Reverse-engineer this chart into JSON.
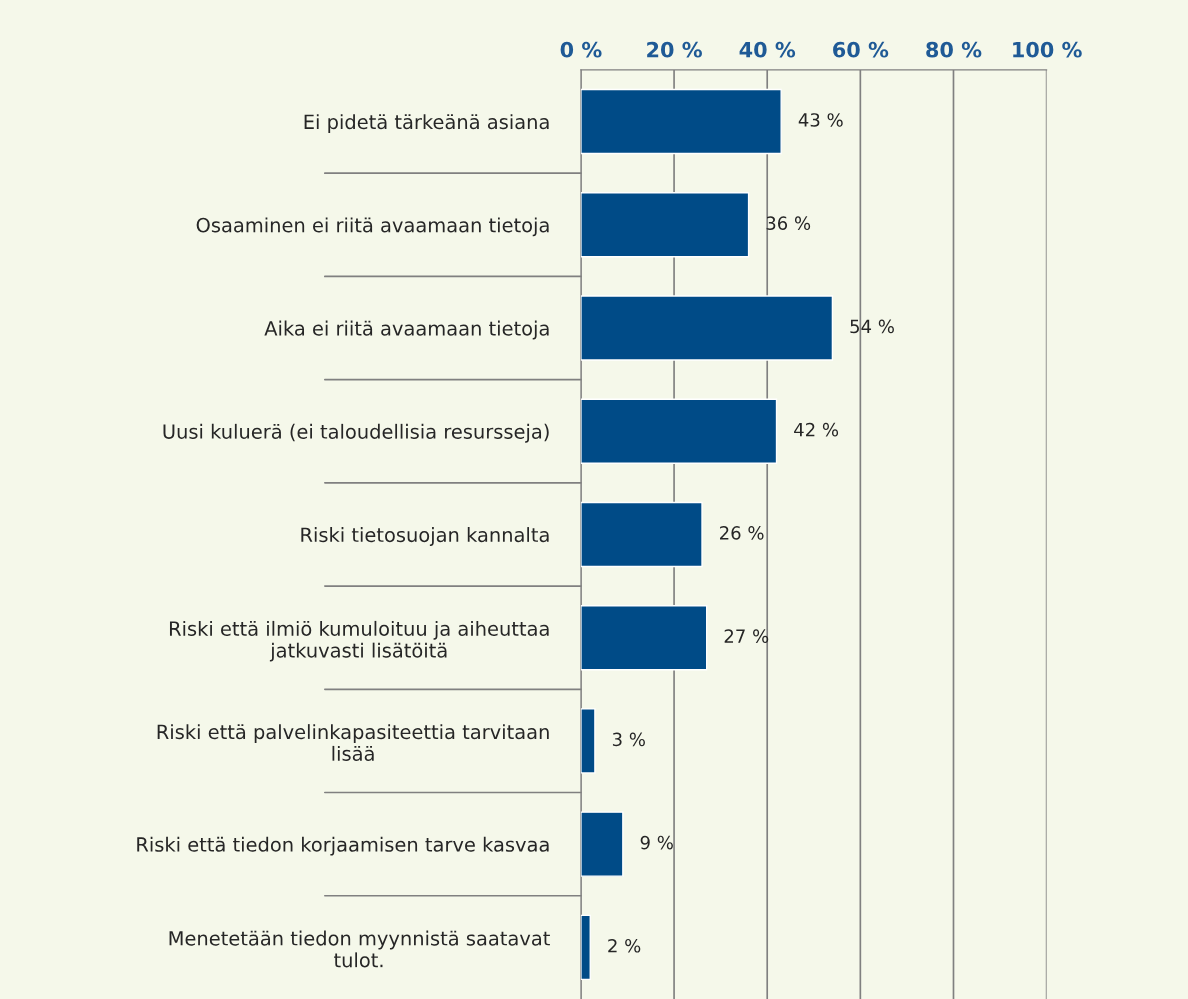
{
  "chart_data": {
    "type": "bar",
    "orientation": "horizontal",
    "categories": [
      "Ei pidetä tärkeänä asiana",
      "Osaaminen ei riitä avaamaan tietoja",
      "Aika ei riitä avaamaan tietoja",
      "Uusi kuluerä (ei taloudellisia resursseja)",
      "Riski tietosuojan kannalta",
      "Riski että ilmiö kumuloituu ja aiheuttaa\njatkuvasti lisätöitä",
      "Riski että palvelinkapasiteettia tarvitaan\nlisää",
      "Riski että tiedon korjaamisen tarve kasvaa",
      "Menetetään tiedon myynnistä saatavat\ntulot."
    ],
    "values": [
      43,
      36,
      54,
      42,
      26,
      27,
      3,
      9,
      2
    ],
    "value_labels": [
      "43 %",
      "36 %",
      "54 %",
      "42 %",
      "26 %",
      "27 %",
      "3 %",
      "9 %",
      "2 %"
    ],
    "color": "#004b87",
    "xlim": [
      0,
      100
    ],
    "xticks": [
      {
        "value": 0,
        "label": "0 %"
      },
      {
        "value": 20,
        "label": "20 %"
      },
      {
        "value": 40,
        "label": "40 %"
      },
      {
        "value": 60,
        "label": "60 %"
      },
      {
        "value": 80,
        "label": "80 %"
      },
      {
        "value": 100,
        "label": "100 %"
      }
    ],
    "grid": "x",
    "legend": false
  }
}
